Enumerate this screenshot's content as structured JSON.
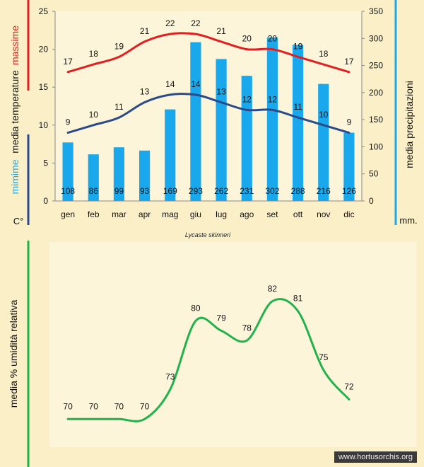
{
  "chart_data": [
    {
      "type": "bar+line",
      "title": "Lycaste skinneri",
      "categories": [
        "gen",
        "feb",
        "mar",
        "apr",
        "mag",
        "giu",
        "lug",
        "ago",
        "set",
        "ott",
        "nov",
        "dic"
      ],
      "left_axis": {
        "ylim": [
          0,
          25
        ],
        "ticks": [
          0,
          5,
          10,
          15,
          20,
          25
        ],
        "label_max": "massime",
        "label_mid": "media  temperature",
        "label_min": "mimime",
        "unit": "C°"
      },
      "right_axis": {
        "ylim": [
          0,
          350
        ],
        "ticks": [
          0,
          50,
          100,
          150,
          200,
          250,
          300,
          350
        ],
        "label": "media  precipitazioni",
        "unit": "mm."
      },
      "series": [
        {
          "name": "massime",
          "kind": "line",
          "axis": "left",
          "color": "#e02020",
          "values": [
            17,
            18,
            19,
            21,
            22,
            22,
            21,
            20,
            20,
            19,
            18,
            17
          ]
        },
        {
          "name": "mimime",
          "kind": "line",
          "axis": "left",
          "color": "#2a4a8a",
          "values": [
            9,
            10,
            11,
            13,
            14,
            14,
            13,
            12,
            12,
            11,
            10,
            9
          ]
        },
        {
          "name": "media precipitazioni",
          "kind": "bar",
          "axis": "right",
          "color": "#19a8ec",
          "values": [
            108,
            86,
            99,
            93,
            169,
            293,
            262,
            231,
            302,
            288,
            216,
            126
          ]
        }
      ],
      "grid": false
    },
    {
      "type": "line",
      "ylabel": "media %  umidità relativa",
      "categories": [
        "gen",
        "feb",
        "mar",
        "apr",
        "mag",
        "giu",
        "lug",
        "ago",
        "set",
        "ott",
        "nov",
        "dic"
      ],
      "series": [
        {
          "name": "umidità relativa",
          "color": "#22b24c",
          "values": [
            70,
            70,
            70,
            70,
            73,
            80,
            79,
            78,
            82,
            81,
            75,
            72
          ]
        }
      ],
      "ylim": [
        68,
        84
      ]
    }
  ],
  "colors": {
    "background": "#fbefc8",
    "plot_bg": "#fdf5da",
    "temp_max": "#e02020",
    "temp_min": "#2a4a8a",
    "rain": "#19a8ec",
    "humidity": "#22b24c"
  },
  "watermark": "www.hortusorchis.org"
}
